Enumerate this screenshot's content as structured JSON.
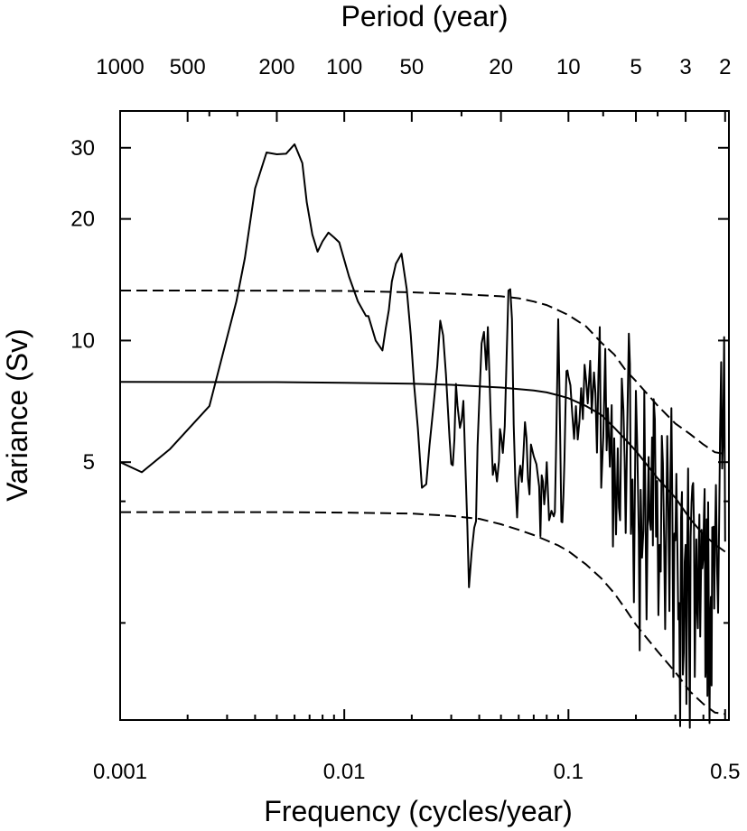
{
  "chart_data": {
    "type": "line",
    "title": "",
    "xlabel": "Frequency (cycles/year)",
    "ylabel": "Variance (Sv)",
    "x2label": "Period (year)",
    "xscale": "log",
    "yscale": "log",
    "xlim": [
      0.001,
      0.52
    ],
    "ylim": [
      1.15,
      37
    ],
    "grid": false,
    "legend": "none",
    "x_ticks": [
      {
        "value": 0.001,
        "label": "0.001"
      },
      {
        "value": 0.01,
        "label": "0.01"
      },
      {
        "value": 0.1,
        "label": "0.1"
      },
      {
        "value": 0.5,
        "label": "0.5"
      }
    ],
    "x2_ticks": [
      {
        "value": 1000,
        "label": "1000"
      },
      {
        "value": 500,
        "label": "500"
      },
      {
        "value": 200,
        "label": "200"
      },
      {
        "value": 100,
        "label": "100"
      },
      {
        "value": 50,
        "label": "50"
      },
      {
        "value": 20,
        "label": "20"
      },
      {
        "value": 10,
        "label": "10"
      },
      {
        "value": 5,
        "label": "5"
      },
      {
        "value": 3,
        "label": "3"
      },
      {
        "value": 2,
        "label": "2"
      }
    ],
    "y_ticks": [
      {
        "value": 5,
        "label": "5"
      },
      {
        "value": 10,
        "label": "10"
      },
      {
        "value": 20,
        "label": "20"
      },
      {
        "value": 30,
        "label": "30"
      }
    ],
    "y_minor_ticks": [
      2,
      4
    ],
    "series": [
      {
        "style": "solid",
        "x": [
          0.001,
          0.00125,
          0.00167,
          0.0025,
          0.0033,
          0.0036,
          0.004,
          0.0045,
          0.005,
          0.0055,
          0.006,
          0.0065,
          0.0068,
          0.0072,
          0.0076,
          0.008,
          0.0085,
          0.009,
          0.0095,
          0.0105,
          0.0115,
          0.0125,
          0.0128,
          0.0138,
          0.0148,
          0.0153,
          0.0158,
          0.0163,
          0.017,
          0.018,
          0.019,
          0.0198,
          0.0205,
          0.0213,
          0.0222,
          0.0232,
          0.024,
          0.025,
          0.026,
          0.0268,
          0.0276,
          0.0284,
          0.029,
          0.0295,
          0.03,
          0.0305,
          0.031,
          0.0315,
          0.032,
          0.0328,
          0.0334,
          0.034,
          0.0347,
          0.0354,
          0.036,
          0.037,
          0.038,
          0.0387,
          0.0393,
          0.04,
          0.041,
          0.042,
          0.043,
          0.0437,
          0.0443,
          0.045,
          0.046,
          0.047,
          0.048,
          0.049,
          0.0495,
          0.05,
          0.051,
          0.052,
          0.053,
          0.054,
          0.055,
          0.056,
          0.057,
          0.058,
          0.059,
          0.06,
          0.061,
          0.062,
          0.063,
          0.064,
          0.065,
          0.066,
          0.067,
          0.068,
          0.07,
          0.072,
          0.074,
          0.075,
          0.076,
          0.077,
          0.078,
          0.079,
          0.08,
          0.082,
          0.084,
          0.086,
          0.087,
          0.088,
          0.089,
          0.09,
          0.091,
          0.092,
          0.093,
          0.094,
          0.095,
          0.096,
          0.097,
          0.098,
          0.099,
          0.1,
          0.102,
          0.104,
          0.106,
          0.108,
          0.11,
          0.112,
          0.114,
          0.116,
          0.118,
          0.12,
          0.122,
          0.125,
          0.127,
          0.13,
          0.132,
          0.134,
          0.136,
          0.138,
          0.14,
          0.143,
          0.146,
          0.148,
          0.15,
          0.153,
          0.156,
          0.158,
          0.16,
          0.163,
          0.166,
          0.168,
          0.17,
          0.173,
          0.176,
          0.178,
          0.18,
          0.183,
          0.186,
          0.188,
          0.19,
          0.193,
          0.196,
          0.198,
          0.2,
          0.203,
          0.206,
          0.208,
          0.21,
          0.213,
          0.216,
          0.218,
          0.22,
          0.223,
          0.226,
          0.228,
          0.23,
          0.233,
          0.236,
          0.238,
          0.24,
          0.243,
          0.246,
          0.249,
          0.252,
          0.255,
          0.258,
          0.261,
          0.264,
          0.267,
          0.27,
          0.273,
          0.276,
          0.279,
          0.282,
          0.285,
          0.288,
          0.291,
          0.294,
          0.297,
          0.3,
          0.303,
          0.306,
          0.309,
          0.312,
          0.315,
          0.318,
          0.321,
          0.324,
          0.327,
          0.33,
          0.333,
          0.336,
          0.339,
          0.342,
          0.345,
          0.348,
          0.351,
          0.354,
          0.357,
          0.36,
          0.363,
          0.366,
          0.369,
          0.372,
          0.375,
          0.378,
          0.381,
          0.384,
          0.387,
          0.39,
          0.393,
          0.396,
          0.399,
          0.402,
          0.405,
          0.408,
          0.411,
          0.414,
          0.417,
          0.42,
          0.423,
          0.426,
          0.429,
          0.432,
          0.435,
          0.438,
          0.441,
          0.444,
          0.447,
          0.45,
          0.455,
          0.46,
          0.465,
          0.47,
          0.475,
          0.48,
          0.485,
          0.49,
          0.495,
          0.5
        ],
        "y": [
          5,
          4.72,
          5.39,
          6.88,
          12.5,
          16.0,
          23.8,
          29.2,
          28.9,
          29.0,
          30.6,
          27.5,
          22.0,
          18.3,
          16.6,
          17.6,
          18.5,
          18.0,
          17.5,
          14.4,
          12.5,
          11.5,
          11.5,
          10.0,
          9.45,
          10.7,
          11.9,
          14.0,
          15.5,
          16.4,
          13.4,
          10.3,
          7.75,
          6.07,
          4.32,
          4.41,
          5.5,
          6.88,
          8.64,
          11.2,
          10.3,
          8.25,
          6.75,
          5.73,
          4.95,
          4.91,
          5.71,
          7.81,
          6.9,
          6.08,
          6.37,
          7.09,
          4.93,
          3.48,
          2.45,
          3.0,
          3.44,
          3.57,
          5.49,
          7.07,
          9.84,
          10.5,
          8.47,
          10.8,
          8.53,
          6.4,
          4.65,
          4.95,
          4.48,
          5.03,
          6.04,
          5.84,
          5.27,
          6.13,
          9.14,
          13.3,
          13.4,
          11.3,
          6.2,
          4.45,
          3.65,
          4.56,
          4.9,
          4.47,
          5.25,
          6.28,
          5.74,
          4.55,
          4.16,
          5.53,
          5.17,
          4.94,
          4.35,
          3.28,
          4.64,
          4.48,
          3.93,
          4.29,
          5.0,
          3.59,
          3.79,
          3.67,
          3.76,
          5.2,
          7.72,
          11.3,
          8.0,
          5.54,
          3.56,
          3.55,
          4.15,
          5.06,
          6.71,
          8.4,
          8.43,
          8.15,
          7.75,
          6.61,
          5.71,
          6.88,
          5.69,
          6.32,
          7.62,
          6.39,
          8.71,
          7.93,
          6.99,
          8.91,
          6.62,
          8.34,
          7.41,
          5.28,
          8.17,
          10.8,
          4.32,
          5.77,
          9.54,
          5.35,
          6.8,
          4.87,
          6.92,
          3.09,
          5.73,
          3.31,
          5.41,
          3.86,
          3.59,
          8.05,
          6.71,
          5.1,
          3.34,
          6.09,
          10.4,
          8.74,
          3.32,
          4.53,
          2.25,
          4.3,
          7.51,
          5.34,
          3.3,
          1.71,
          4.27,
          2.9,
          3.38,
          7.5,
          4.33,
          2.04,
          3.92,
          5.15,
          3.6,
          3.4,
          5.76,
          3.11,
          7.16,
          6.39,
          3.27,
          4.49,
          2.09,
          3.12,
          2.68,
          5.81,
          4.98,
          3.26,
          1.93,
          3.54,
          5.8,
          3.91,
          2.14,
          4.53,
          6.8,
          3.76,
          1.47,
          3.33,
          3.2,
          4.68,
          3.14,
          2.04,
          2.24,
          1.11,
          3.65,
          4.22,
          1.49,
          1.69,
          2.83,
          3.12,
          1.26,
          3.17,
          4.82,
          2.04,
          1.1,
          3.26,
          3.98,
          4.36,
          4.44,
          3.46,
          1.47,
          2.22,
          3.22,
          2.15,
          1.94,
          3.04,
          3.71,
          1.85,
          2.57,
          3.4,
          2.73,
          2.88,
          3.67,
          4.29,
          1.47,
          1.59,
          3.61,
          1.32,
          3.98,
          2.15,
          1.13,
          2.01,
          2.32,
          1.4,
          3.45,
          3.04,
          3.46,
          2.17,
          3.06,
          4.39,
          2.77,
          2.12,
          3.46,
          5.93,
          8.84,
          4.82,
          5.73,
          10.2,
          3.18
        ]
      },
      {
        "style": "solid",
        "x": [
          0.001,
          0.005,
          0.01,
          0.02,
          0.03,
          0.04,
          0.05,
          0.06,
          0.07,
          0.08,
          0.09,
          0.1,
          0.12,
          0.14,
          0.16,
          0.18,
          0.2,
          0.25,
          0.3,
          0.35,
          0.4,
          0.45,
          0.5
        ],
        "y": [
          7.9,
          7.89,
          7.86,
          7.82,
          7.77,
          7.7,
          7.65,
          7.58,
          7.52,
          7.44,
          7.32,
          7.2,
          6.88,
          6.55,
          6.09,
          5.68,
          5.33,
          4.56,
          4.08,
          3.61,
          3.31,
          3.13,
          3.0
        ]
      },
      {
        "style": "dashed",
        "x": [
          0.001,
          0.005,
          0.01,
          0.02,
          0.03,
          0.04,
          0.05,
          0.06,
          0.07,
          0.08,
          0.09,
          0.1,
          0.12,
          0.14,
          0.16,
          0.18,
          0.2,
          0.25,
          0.3,
          0.35,
          0.4,
          0.45,
          0.5
        ],
        "y": [
          13.3,
          13.29,
          13.27,
          13.16,
          13.06,
          12.95,
          12.87,
          12.72,
          12.49,
          12.24,
          11.88,
          11.56,
          10.83,
          9.89,
          9.24,
          8.44,
          7.94,
          6.9,
          6.23,
          5.86,
          5.53,
          5.29,
          5.24
        ]
      },
      {
        "style": "dashed",
        "x": [
          0.001,
          0.005,
          0.01,
          0.02,
          0.03,
          0.04,
          0.05,
          0.06,
          0.07,
          0.08,
          0.09,
          0.1,
          0.12,
          0.14,
          0.16,
          0.18,
          0.2,
          0.25,
          0.3,
          0.35,
          0.4,
          0.45,
          0.5
        ],
        "y": [
          3.76,
          3.76,
          3.75,
          3.73,
          3.68,
          3.62,
          3.51,
          3.4,
          3.3,
          3.2,
          3.11,
          3.01,
          2.79,
          2.58,
          2.37,
          2.16,
          1.98,
          1.7,
          1.51,
          1.35,
          1.26,
          1.2,
          1.19
        ]
      }
    ]
  }
}
